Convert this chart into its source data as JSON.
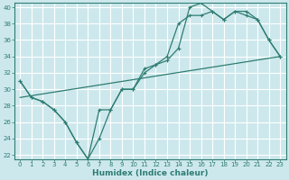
{
  "bg_color": "#cde8ed",
  "grid_color": "#ffffff",
  "line_color": "#2e7d72",
  "xlabel": "Humidex (Indice chaleur)",
  "ylim": [
    21.5,
    40.5
  ],
  "xlim": [
    -0.5,
    23.5
  ],
  "yticks": [
    22,
    24,
    26,
    28,
    30,
    32,
    34,
    36,
    38,
    40
  ],
  "xticks": [
    0,
    1,
    2,
    3,
    4,
    5,
    6,
    7,
    8,
    9,
    10,
    11,
    12,
    13,
    14,
    15,
    16,
    17,
    18,
    19,
    20,
    21,
    22,
    23
  ],
  "line1_x": [
    0,
    1,
    2,
    3,
    4,
    5,
    6,
    7,
    8,
    9,
    10,
    11,
    12,
    13,
    14,
    15,
    16,
    17,
    18,
    19,
    20,
    21,
    22,
    23
  ],
  "line1_y": [
    31,
    29,
    28.5,
    27.5,
    26,
    23.5,
    21.5,
    24,
    27.5,
    30,
    30,
    32.5,
    33,
    33.5,
    35.0,
    40,
    40.5,
    39.5,
    38.5,
    39.5,
    39.0,
    38.5,
    36,
    34
  ],
  "line2_x": [
    0,
    1,
    2,
    3,
    4,
    5,
    6,
    7,
    8,
    9,
    10,
    11,
    12,
    13,
    14,
    15,
    16,
    17,
    18,
    19,
    20,
    21,
    22,
    23
  ],
  "line2_y": [
    31,
    29,
    28.5,
    27.5,
    26,
    23.5,
    21.5,
    27.5,
    27.5,
    30,
    30,
    32.0,
    33,
    34,
    38,
    39,
    39,
    39.5,
    38.5,
    39.5,
    39.5,
    38.5,
    36,
    34
  ],
  "line3_x": [
    0,
    23
  ],
  "line3_y": [
    29.0,
    34.0
  ],
  "xlabel_fontsize": 6.5,
  "tick_fontsize": 5.0
}
